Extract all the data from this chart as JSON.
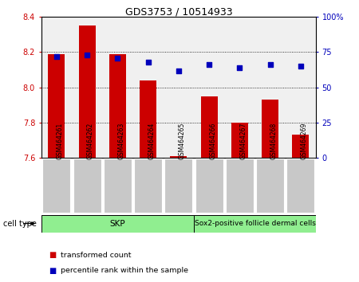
{
  "title": "GDS3753 / 10514933",
  "samples": [
    "GSM464261",
    "GSM464262",
    "GSM464263",
    "GSM464264",
    "GSM464265",
    "GSM464266",
    "GSM464267",
    "GSM464268",
    "GSM464269"
  ],
  "transformed_counts": [
    8.19,
    8.35,
    8.19,
    8.04,
    7.61,
    7.95,
    7.8,
    7.93,
    7.73
  ],
  "percentile_ranks": [
    72,
    73,
    71,
    68,
    62,
    66,
    64,
    66,
    65
  ],
  "ylim_left": [
    7.6,
    8.4
  ],
  "ylim_right": [
    0,
    100
  ],
  "yticks_left": [
    7.6,
    7.8,
    8.0,
    8.2,
    8.4
  ],
  "yticks_right": [
    0,
    25,
    50,
    75,
    100
  ],
  "ytick_labels_right": [
    "0",
    "25",
    "50",
    "75",
    "100%"
  ],
  "bar_color": "#cc0000",
  "dot_color": "#0000bb",
  "bar_bottom": 7.6,
  "skp_count": 5,
  "cell_type_labels": [
    "SKP",
    "Sox2-positive follicle dermal cells"
  ],
  "cell_type_color": "#90ee90",
  "cell_type_label": "cell type",
  "legend_items": [
    {
      "label": "transformed count",
      "color": "#cc0000"
    },
    {
      "label": "percentile rank within the sample",
      "color": "#0000bb"
    }
  ],
  "grid_color": "black",
  "grid_style": "dotted",
  "tick_label_color_left": "#cc0000",
  "tick_label_color_right": "#0000bb",
  "background_plot": "#f0f0f0",
  "background_xtick": "#c8c8c8",
  "title_fontsize": 9
}
